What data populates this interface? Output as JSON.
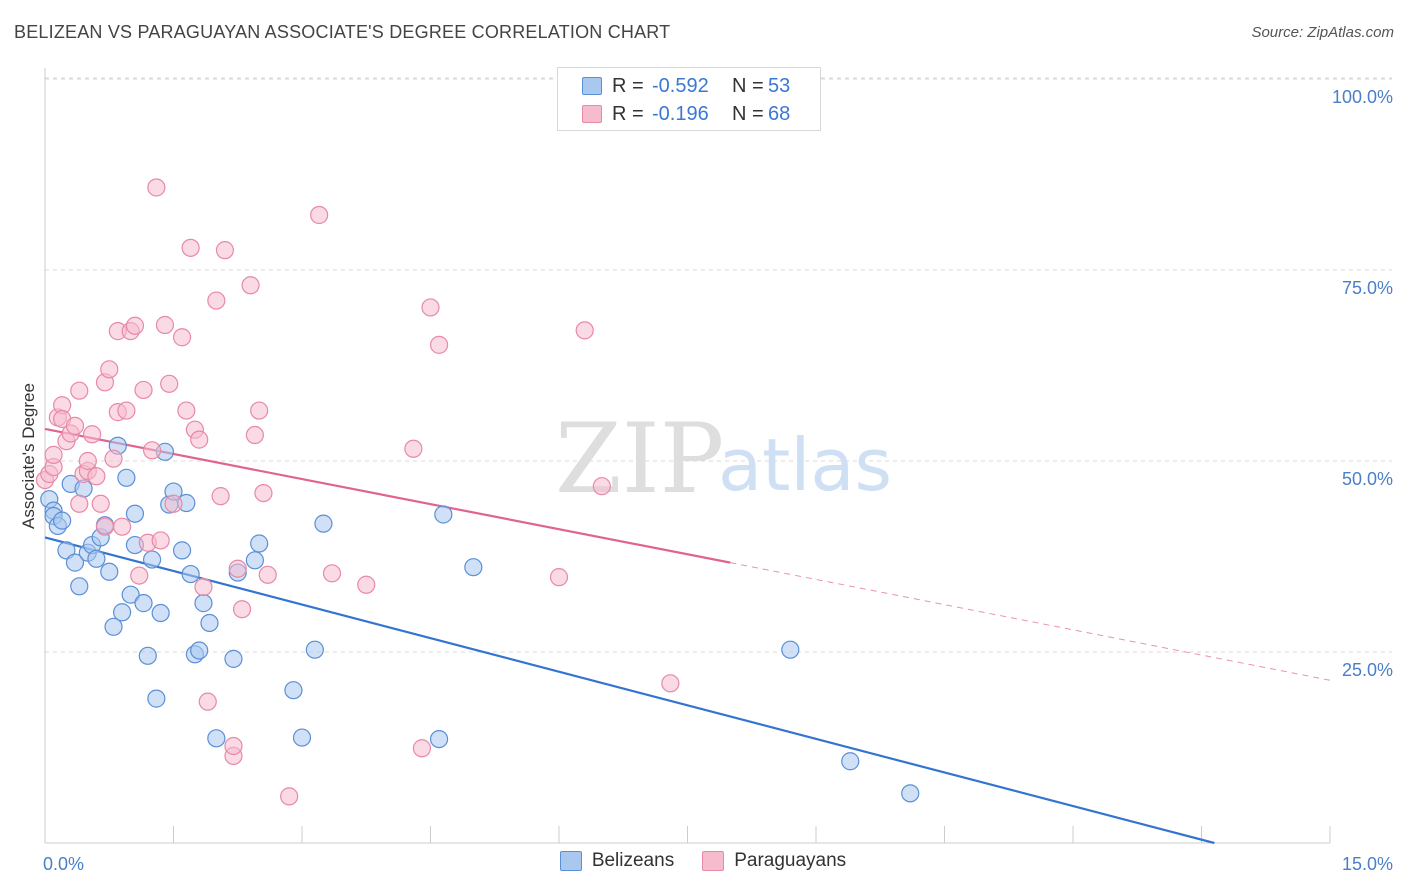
{
  "header": {
    "title": "BELIZEAN VS PARAGUAYAN ASSOCIATE'S DEGREE CORRELATION CHART",
    "source": "Source: ZipAtlas.com"
  },
  "legend_top": {
    "rows": [
      {
        "r_label": "R =",
        "r_value": "-0.592",
        "n_label": "N =",
        "n_value": "53"
      },
      {
        "r_label": "R =",
        "r_value": "-0.196",
        "n_label": "N =",
        "n_value": "68"
      }
    ]
  },
  "legend_bottom": [
    "Belizeans",
    "Paraguayans"
  ],
  "watermark": {
    "zip": "ZIP",
    "atlas": "atlas"
  },
  "colors": {
    "belizean_fill": "#a9c8f0",
    "belizean_stroke": "#5b8fd6",
    "belizean_line": "#3474d0",
    "paraguayan_fill": "#f6bccd",
    "paraguayan_stroke": "#e889a6",
    "paraguayan_line": "#e0648e",
    "grid": "#d9d9d9",
    "tick_text": "#4a7fc8"
  },
  "chart_data": {
    "type": "scatter",
    "title": "BELIZEAN VS PARAGUAYAN ASSOCIATE'S DEGREE CORRELATION CHART",
    "xlabel": "",
    "ylabel": "Associate's Degree",
    "xlim": [
      0,
      15
    ],
    "ylim": [
      0,
      100
    ],
    "x_tick_labels": [
      "0.0%",
      "15.0%"
    ],
    "y_tick_labels": [
      "100.0%",
      "75.0%",
      "50.0%",
      "25.0%"
    ],
    "y_ticks": [
      100,
      75,
      50,
      25
    ],
    "grid": true,
    "legend_position": "top-center",
    "series": [
      {
        "name": "Belizeans",
        "r": -0.592,
        "n": 53,
        "trend": {
          "x0": 0,
          "y0": 40.0,
          "x1": 13.65,
          "y1": 0,
          "dashed_to": null
        },
        "points": [
          [
            0.05,
            45.0
          ],
          [
            0.1,
            43.5
          ],
          [
            0.1,
            42.8
          ],
          [
            0.15,
            41.5
          ],
          [
            0.2,
            42.2
          ],
          [
            0.25,
            38.3
          ],
          [
            0.3,
            47.0
          ],
          [
            0.35,
            36.7
          ],
          [
            0.4,
            33.6
          ],
          [
            0.45,
            46.4
          ],
          [
            0.5,
            38.0
          ],
          [
            0.55,
            39.0
          ],
          [
            0.6,
            37.2
          ],
          [
            0.65,
            40.0
          ],
          [
            0.7,
            41.6
          ],
          [
            0.75,
            35.5
          ],
          [
            0.8,
            28.3
          ],
          [
            0.85,
            52.0
          ],
          [
            0.9,
            30.2
          ],
          [
            0.95,
            47.8
          ],
          [
            1.0,
            32.5
          ],
          [
            1.05,
            39.0
          ],
          [
            1.05,
            43.1
          ],
          [
            1.15,
            31.4
          ],
          [
            1.2,
            24.5
          ],
          [
            1.25,
            37.1
          ],
          [
            1.3,
            18.9
          ],
          [
            1.35,
            30.1
          ],
          [
            1.4,
            51.2
          ],
          [
            1.45,
            44.3
          ],
          [
            1.5,
            46.0
          ],
          [
            1.6,
            38.3
          ],
          [
            1.65,
            44.5
          ],
          [
            1.7,
            35.2
          ],
          [
            1.75,
            24.7
          ],
          [
            1.8,
            25.2
          ],
          [
            1.85,
            31.4
          ],
          [
            1.92,
            28.8
          ],
          [
            2.0,
            13.7
          ],
          [
            2.2,
            24.1
          ],
          [
            2.25,
            35.4
          ],
          [
            2.45,
            37.0
          ],
          [
            2.5,
            39.2
          ],
          [
            2.9,
            20.0
          ],
          [
            3.0,
            13.8
          ],
          [
            3.15,
            25.3
          ],
          [
            3.25,
            41.8
          ],
          [
            4.6,
            13.6
          ],
          [
            4.65,
            43.0
          ],
          [
            5.0,
            36.1
          ],
          [
            8.7,
            25.3
          ],
          [
            9.4,
            10.7
          ],
          [
            10.1,
            6.5
          ]
        ]
      },
      {
        "name": "Paraguayans",
        "r": -0.196,
        "n": 68,
        "trend": {
          "x0": 0,
          "y0": 54.2,
          "x1": 8.0,
          "y1": 36.7,
          "dashed_to": {
            "x": 15.0,
            "y": 21.3
          }
        },
        "points": [
          [
            0.0,
            47.5
          ],
          [
            0.05,
            48.3
          ],
          [
            0.1,
            49.2
          ],
          [
            0.1,
            50.8
          ],
          [
            0.15,
            55.7
          ],
          [
            0.2,
            57.3
          ],
          [
            0.2,
            55.5
          ],
          [
            0.25,
            52.6
          ],
          [
            0.3,
            53.6
          ],
          [
            0.35,
            54.6
          ],
          [
            0.4,
            59.2
          ],
          [
            0.4,
            44.4
          ],
          [
            0.45,
            48.3
          ],
          [
            0.5,
            48.7
          ],
          [
            0.5,
            50.0
          ],
          [
            0.55,
            53.5
          ],
          [
            0.6,
            48.0
          ],
          [
            0.65,
            44.4
          ],
          [
            0.7,
            60.3
          ],
          [
            0.7,
            41.4
          ],
          [
            0.75,
            62.0
          ],
          [
            0.8,
            50.3
          ],
          [
            0.85,
            67.0
          ],
          [
            0.85,
            56.4
          ],
          [
            0.9,
            41.4
          ],
          [
            0.95,
            56.6
          ],
          [
            1.0,
            67.0
          ],
          [
            1.05,
            67.7
          ],
          [
            1.1,
            35.0
          ],
          [
            1.15,
            59.3
          ],
          [
            1.2,
            39.3
          ],
          [
            1.25,
            51.4
          ],
          [
            1.3,
            85.8
          ],
          [
            1.35,
            39.6
          ],
          [
            1.4,
            67.8
          ],
          [
            1.45,
            60.1
          ],
          [
            1.5,
            44.4
          ],
          [
            1.6,
            66.2
          ],
          [
            1.65,
            56.6
          ],
          [
            1.7,
            77.9
          ],
          [
            1.75,
            54.1
          ],
          [
            1.8,
            52.8
          ],
          [
            1.85,
            33.5
          ],
          [
            1.9,
            18.5
          ],
          [
            2.0,
            71.0
          ],
          [
            2.05,
            45.4
          ],
          [
            2.1,
            77.6
          ],
          [
            2.2,
            11.4
          ],
          [
            2.2,
            12.7
          ],
          [
            2.25,
            35.9
          ],
          [
            2.3,
            30.6
          ],
          [
            2.4,
            73.0
          ],
          [
            2.45,
            53.4
          ],
          [
            2.5,
            56.6
          ],
          [
            2.55,
            45.8
          ],
          [
            2.6,
            35.1
          ],
          [
            2.85,
            6.1
          ],
          [
            3.2,
            82.2
          ],
          [
            3.35,
            35.3
          ],
          [
            3.75,
            33.8
          ],
          [
            4.3,
            51.6
          ],
          [
            4.4,
            12.4
          ],
          [
            4.5,
            70.1
          ],
          [
            4.6,
            65.2
          ],
          [
            6.0,
            34.8
          ],
          [
            6.3,
            67.1
          ],
          [
            6.5,
            46.7
          ],
          [
            7.3,
            20.9
          ]
        ]
      }
    ]
  }
}
